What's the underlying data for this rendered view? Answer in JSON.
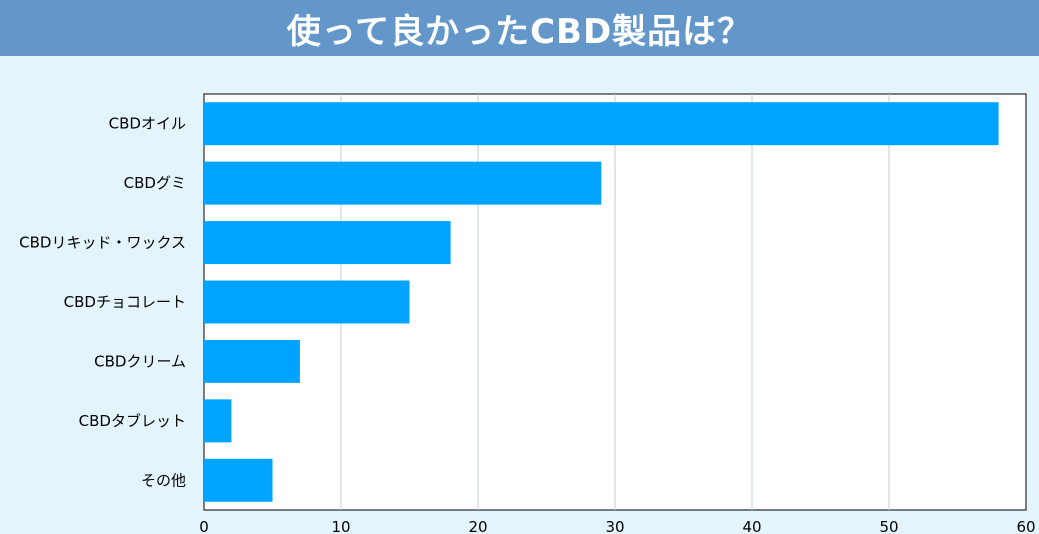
{
  "header": {
    "title": "使って良かったCBD製品は？"
  },
  "chart_data": {
    "type": "bar",
    "orientation": "horizontal",
    "title": "使って良かったCBD製品は？",
    "categories": [
      "CBDオイル",
      "CBDグミ",
      "CBDリキッド・ワックス",
      "CBDチョコレート",
      "CBDクリーム",
      "CBDタブレット",
      "その他"
    ],
    "values": [
      58,
      29,
      18,
      15,
      7,
      2,
      5
    ],
    "xlim": [
      0,
      60
    ],
    "xticks": [
      0,
      10,
      20,
      30,
      40,
      50,
      60
    ],
    "xlabel": "",
    "ylabel": "",
    "grid": true,
    "legend": "none",
    "bar_color": "#00a3ff",
    "header_color": "#6497c9",
    "background_color": "#e4f4fb"
  }
}
